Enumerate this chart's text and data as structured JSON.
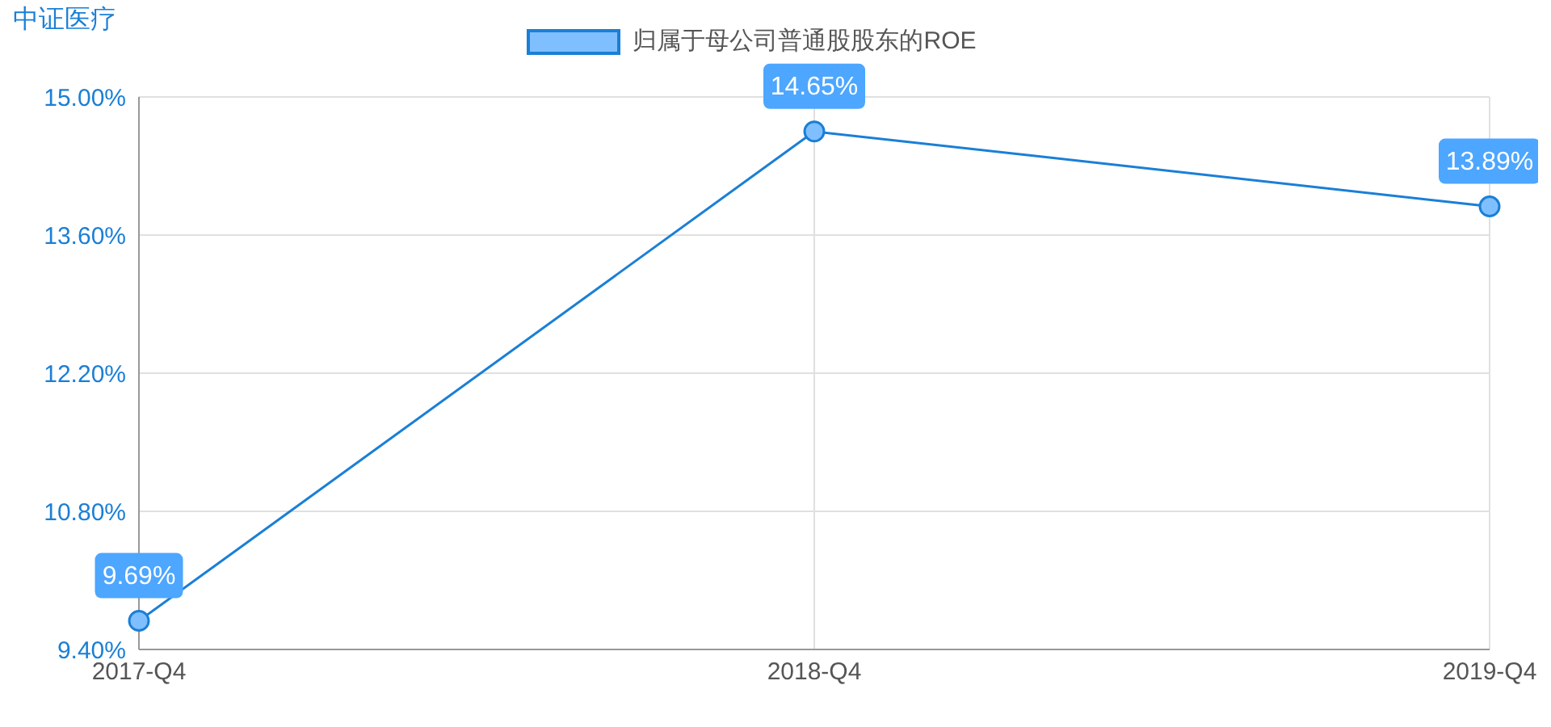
{
  "chart_data": {
    "type": "line",
    "title": "中证医疗",
    "categories": [
      "2017-Q4",
      "2018-Q4",
      "2019-Q4"
    ],
    "series": [
      {
        "name": "归属于母公司普通股股东的ROE",
        "color": "#1a7fd6",
        "values": [
          9.69,
          14.65,
          13.89
        ],
        "value_labels": [
          "9.69%",
          "14.65%",
          "13.89%"
        ]
      }
    ],
    "ylim": [
      9.4,
      15
    ],
    "yticks": [
      {
        "value": 9.4,
        "label": "9.40%"
      },
      {
        "value": 10.8,
        "label": "10.80%"
      },
      {
        "value": 12.2,
        "label": "12.20%"
      },
      {
        "value": 13.6,
        "label": "13.60%"
      },
      {
        "value": 15,
        "label": "15.00%"
      }
    ],
    "grid": true,
    "legend": "top",
    "marker": "circle",
    "line_style": "solid"
  }
}
